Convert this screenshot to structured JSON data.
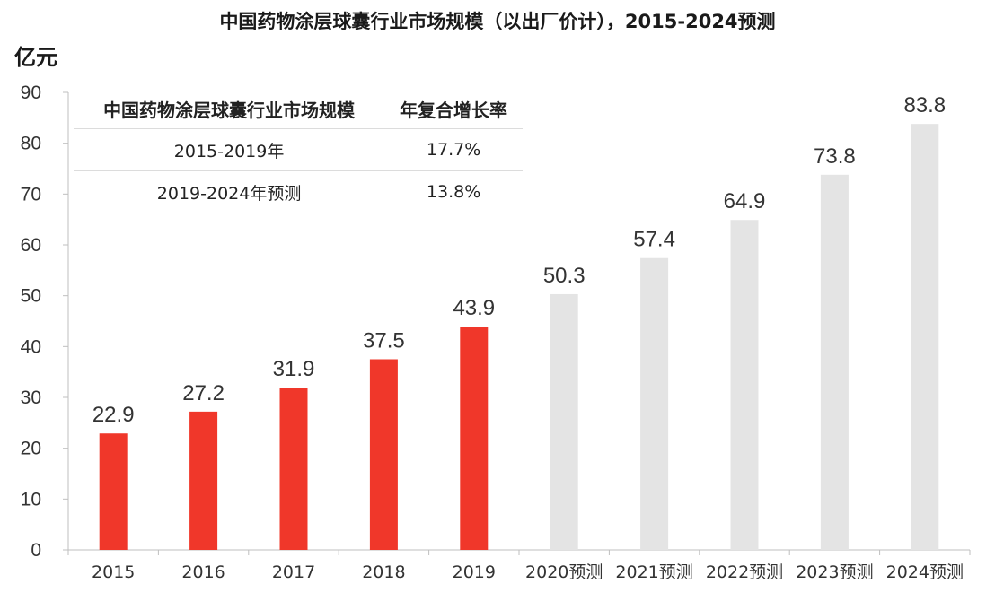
{
  "chart_data": {
    "type": "bar",
    "title": "中国药物涂层球囊行业市场规模（以出厂价计），2015-2024预测",
    "ylabel": "亿元",
    "categories": [
      "2015",
      "2016",
      "2017",
      "2018",
      "2019",
      "2020预测",
      "2021预测",
      "2022预测",
      "2023预测",
      "2024预测"
    ],
    "values": [
      22.9,
      27.2,
      31.9,
      37.5,
      43.9,
      50.3,
      57.4,
      64.9,
      73.8,
      83.8
    ],
    "data_labels": [
      "22.9",
      "27.2",
      "31.9",
      "37.5",
      "43.9",
      "50.3",
      "57.4",
      "64.9",
      "73.8",
      "83.8"
    ],
    "ylim": [
      0,
      90
    ],
    "yticks": [
      0,
      10,
      20,
      30,
      40,
      50,
      60,
      70,
      80,
      90
    ],
    "grid": false,
    "colors": {
      "historical": "#f0372a",
      "forecast": "#e4e4e4"
    },
    "forecast_start_index": 5
  },
  "table": {
    "header": [
      "中国药物涂层球囊行业市场规模",
      "年复合增长率"
    ],
    "rows": [
      {
        "period": "2015-2019年",
        "rate": "17.7%"
      },
      {
        "period": "2019-2024年预测",
        "rate": "13.8%"
      }
    ]
  }
}
